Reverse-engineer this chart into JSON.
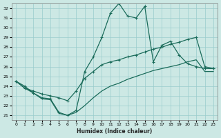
{
  "xlabel": "Humidex (Indice chaleur)",
  "bg_color": "#cce8e4",
  "grid_color": "#99cccc",
  "line_color": "#1a6b5a",
  "xlim": [
    -0.5,
    23.5
  ],
  "ylim": [
    20.5,
    32.5
  ],
  "xticks": [
    0,
    1,
    2,
    3,
    4,
    5,
    6,
    7,
    8,
    9,
    10,
    11,
    12,
    13,
    14,
    15,
    16,
    17,
    18,
    19,
    20,
    21,
    22,
    23
  ],
  "yticks": [
    21,
    22,
    23,
    24,
    25,
    26,
    27,
    28,
    29,
    30,
    31,
    32
  ],
  "line1_x": [
    0,
    1,
    2,
    3,
    4,
    5,
    6,
    7,
    8,
    9,
    10,
    11,
    12,
    13,
    14,
    15,
    16,
    17,
    18,
    19,
    20,
    21,
    22,
    23
  ],
  "line1_y": [
    24.5,
    24.0,
    23.3,
    22.8,
    22.7,
    21.3,
    21.0,
    21.5,
    25.5,
    27.0,
    29.0,
    31.5,
    32.5,
    31.2,
    31.0,
    32.2,
    26.5,
    28.2,
    28.6,
    27.2,
    26.3,
    26.0,
    25.8,
    25.8
  ],
  "line2_x": [
    0,
    1,
    2,
    3,
    4,
    5,
    6,
    7,
    8,
    9,
    10,
    11,
    12,
    13,
    14,
    15,
    16,
    17,
    18,
    19,
    20,
    21,
    22,
    23
  ],
  "line2_y": [
    24.5,
    23.8,
    23.5,
    23.2,
    23.0,
    22.8,
    22.5,
    23.5,
    24.8,
    25.5,
    26.2,
    26.5,
    26.7,
    27.0,
    27.2,
    27.5,
    27.8,
    28.0,
    28.3,
    28.5,
    28.8,
    29.0,
    26.0,
    25.8
  ],
  "line3_x": [
    0,
    1,
    2,
    3,
    4,
    5,
    6,
    7,
    8,
    9,
    10,
    11,
    12,
    13,
    14,
    15,
    16,
    17,
    18,
    19,
    20,
    21,
    22,
    23
  ],
  "line3_y": [
    24.5,
    23.8,
    23.3,
    22.7,
    22.6,
    21.2,
    21.0,
    21.3,
    22.0,
    22.8,
    23.5,
    24.0,
    24.3,
    24.7,
    25.0,
    25.3,
    25.6,
    25.8,
    26.0,
    26.2,
    26.5,
    26.7,
    25.5,
    25.5
  ]
}
